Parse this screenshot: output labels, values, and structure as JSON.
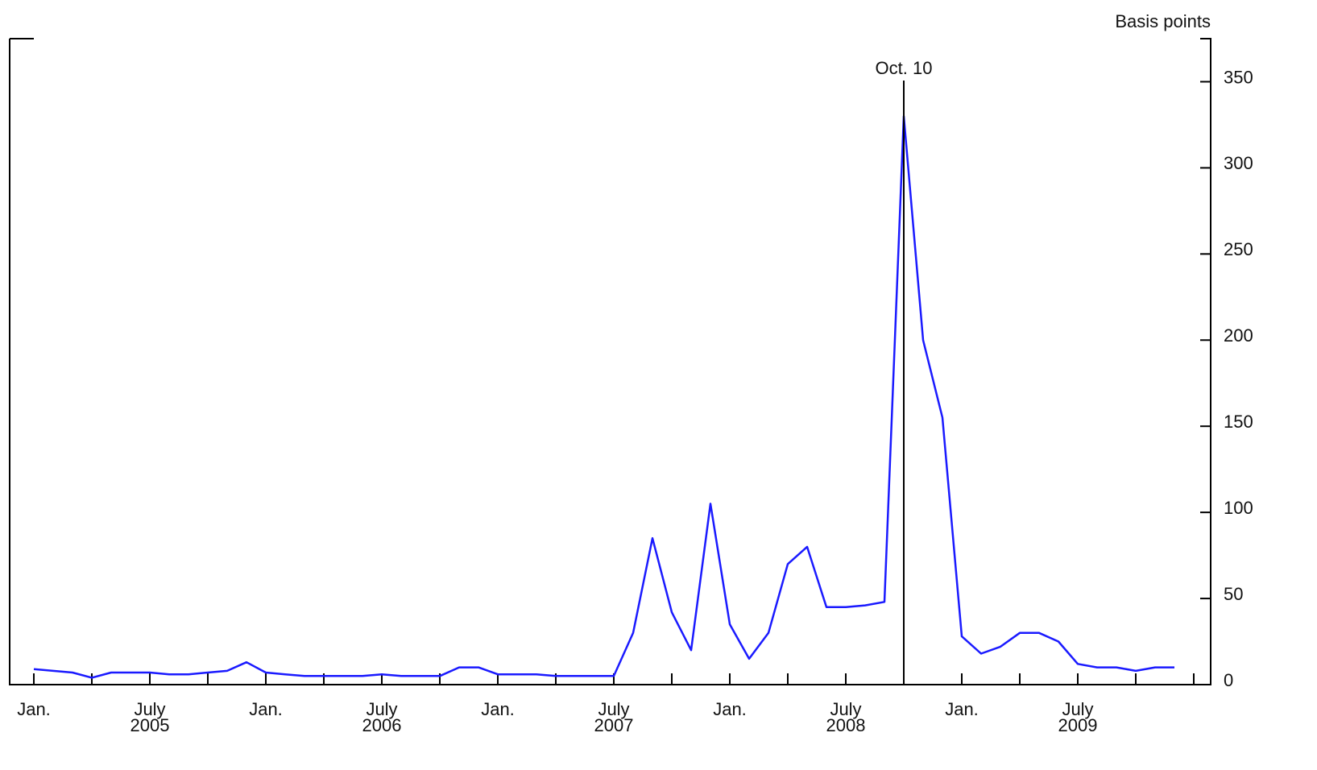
{
  "chart_data": {
    "type": "line",
    "y_axis_label": "Basis points",
    "x": [
      "2005-01",
      "2005-02",
      "2005-03",
      "2005-04",
      "2005-05",
      "2005-06",
      "2005-07",
      "2005-08",
      "2005-09",
      "2005-10",
      "2005-11",
      "2005-12",
      "2006-01",
      "2006-02",
      "2006-03",
      "2006-04",
      "2006-05",
      "2006-06",
      "2006-07",
      "2006-08",
      "2006-09",
      "2006-10",
      "2006-11",
      "2006-12",
      "2007-01",
      "2007-02",
      "2007-03",
      "2007-04",
      "2007-05",
      "2007-06",
      "2007-07",
      "2007-08",
      "2007-09",
      "2007-10",
      "2007-11",
      "2007-12",
      "2008-01",
      "2008-02",
      "2008-03",
      "2008-04",
      "2008-05",
      "2008-06",
      "2008-07",
      "2008-08",
      "2008-09",
      "2008-10",
      "2008-11",
      "2008-12",
      "2009-01",
      "2009-02",
      "2009-03",
      "2009-04",
      "2009-05",
      "2009-06",
      "2009-07",
      "2009-08",
      "2009-09",
      "2009-10",
      "2009-11",
      "2009-12"
    ],
    "series": [
      {
        "color": "#1a1aff",
        "values": [
          9,
          8,
          7,
          4,
          7,
          7,
          7,
          6,
          6,
          7,
          8,
          13,
          7,
          6,
          5,
          5,
          5,
          5,
          6,
          5,
          5,
          5,
          10,
          10,
          6,
          6,
          6,
          5,
          5,
          5,
          5,
          30,
          85,
          42,
          20,
          105,
          35,
          15,
          30,
          70,
          80,
          45,
          45,
          46,
          48,
          330,
          200,
          155,
          28,
          18,
          22,
          30,
          30,
          25,
          12,
          10,
          10,
          8,
          10,
          10
        ]
      }
    ],
    "xlim": [
      "2005-01",
      "2010-01"
    ],
    "ylim": [
      0,
      375
    ],
    "yticks": [
      0,
      50,
      100,
      150,
      200,
      250,
      300,
      350
    ],
    "xticks": [
      "2005-01",
      "2005-04",
      "2005-07",
      "2005-10",
      "2006-01",
      "2006-04",
      "2006-07",
      "2006-10",
      "2007-01",
      "2007-04",
      "2007-07",
      "2007-10",
      "2008-01",
      "2008-04",
      "2008-07",
      "2008-10",
      "2009-01",
      "2009-04",
      "2009-07",
      "2009-10",
      "2010-01"
    ],
    "xtick_labels": [
      {
        "value": "2005-01",
        "label": "Jan."
      },
      {
        "value": "2005-07",
        "label": "July"
      },
      {
        "value": "2006-01",
        "label": "Jan."
      },
      {
        "value": "2006-07",
        "label": "July"
      },
      {
        "value": "2007-01",
        "label": "Jan."
      },
      {
        "value": "2007-07",
        "label": "July"
      },
      {
        "value": "2008-01",
        "label": "Jan."
      },
      {
        "value": "2008-07",
        "label": "July"
      },
      {
        "value": "2009-01",
        "label": "Jan."
      },
      {
        "value": "2009-07",
        "label": "July"
      }
    ],
    "year_labels": [
      {
        "value": "2005-07",
        "label": "2005"
      },
      {
        "value": "2006-07",
        "label": "2006"
      },
      {
        "value": "2007-07",
        "label": "2007"
      },
      {
        "value": "2008-07",
        "label": "2008"
      },
      {
        "value": "2009-07",
        "label": "2009"
      }
    ],
    "annotations": [
      {
        "x": "2008-10",
        "label": "Oct. 10"
      }
    ]
  }
}
